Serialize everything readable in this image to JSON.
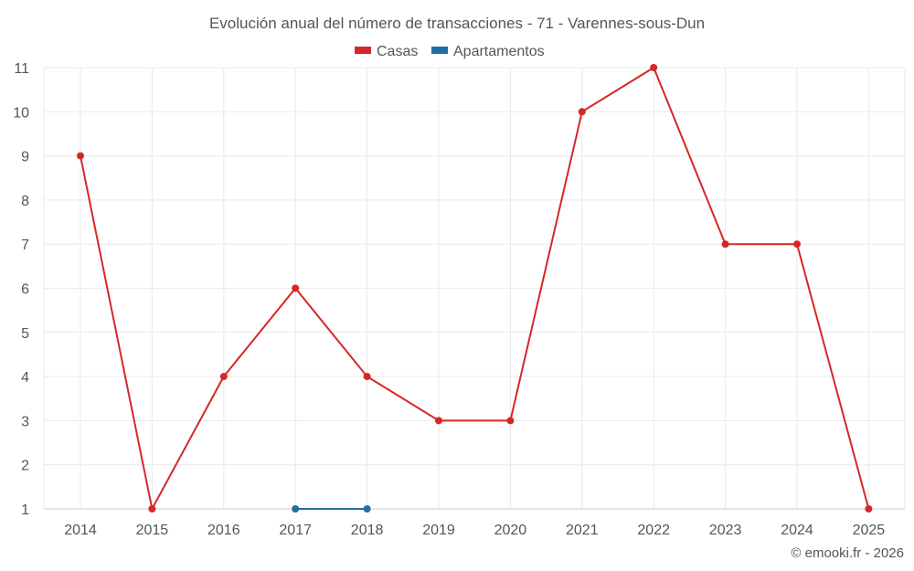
{
  "chart_data": {
    "type": "line",
    "title": "Evolución anual del número de transacciones - 71 - Varennes-sous-Dun",
    "categories": [
      "2014",
      "2015",
      "2016",
      "2017",
      "2018",
      "2019",
      "2020",
      "2021",
      "2022",
      "2023",
      "2024",
      "2025"
    ],
    "series": [
      {
        "name": "Casas",
        "color": "#d62728",
        "values": [
          9,
          1,
          4,
          6,
          4,
          3,
          3,
          10,
          11,
          7,
          7,
          1
        ]
      },
      {
        "name": "Apartamentos",
        "color": "#1f6fa3",
        "values": [
          null,
          null,
          null,
          1,
          1,
          null,
          null,
          null,
          null,
          null,
          null,
          null
        ]
      }
    ],
    "ylim": [
      1,
      11
    ],
    "yticks": [
      "1",
      "2",
      "3",
      "4",
      "5",
      "6",
      "7",
      "8",
      "9",
      "10",
      "11"
    ],
    "xlabel": "",
    "ylabel": "",
    "grid": true,
    "legend": "top-center"
  },
  "credit": "© emooki.fr - 2026"
}
